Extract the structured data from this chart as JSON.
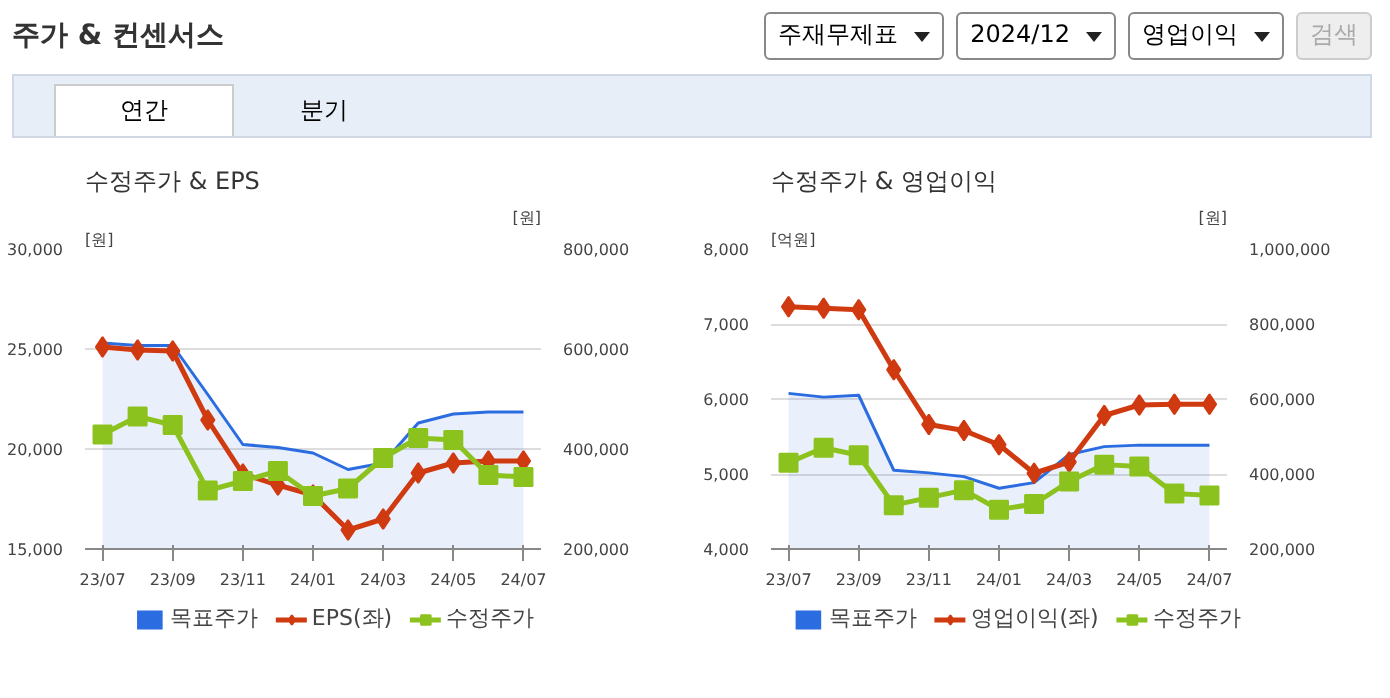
{
  "chart_data": [
    {
      "type": "other",
      "title": "주가 & 컨센서스",
      "annotations": [
        "주재무제표",
        "2024/12",
        "영업이익",
        "검색",
        "연간",
        "분기"
      ]
    },
    {
      "type": "line",
      "title": "수정주가 & EPS",
      "ylabel": "[원]",
      "y2label": "[원]",
      "categories": [
        "23/07",
        null,
        "23/09",
        null,
        "23/11",
        null,
        "24/01",
        null,
        "24/03",
        null,
        "24/05",
        null,
        "24/07"
      ],
      "ylim": [
        15000,
        30000
      ],
      "yticks": [
        {
          "value": 15000,
          "label": "15,000"
        },
        {
          "value": 20000,
          "label": "20,000"
        },
        {
          "value": 25000,
          "label": "25,000"
        },
        {
          "value": 30000,
          "label": "30,000"
        }
      ],
      "y2lim": [
        200000,
        800000
      ],
      "y2ticks": [
        {
          "value": 200000,
          "label": "200,000"
        },
        {
          "value": 400000,
          "label": "400,000"
        },
        {
          "value": 600000,
          "label": "600,000"
        },
        {
          "value": 800000,
          "label": "800,000"
        }
      ],
      "grid": "y",
      "legend": "bottom",
      "series": [
        {
          "name": "목표주가",
          "type": "area",
          "axis": "y2",
          "color": "#2b6de0",
          "values": [
            612000,
            607000,
            607000,
            509000,
            409000,
            403000,
            392000,
            359000,
            372000,
            452000,
            470000,
            474000,
            474000
          ]
        },
        {
          "name": "EPS(좌)",
          "type": "line",
          "marker": "diamond",
          "color": "#d03a10",
          "values": [
            25100,
            24950,
            24900,
            21450,
            18750,
            18200,
            17700,
            15950,
            16500,
            18800,
            19300,
            19400,
            19400
          ]
        },
        {
          "name": "수정주가",
          "type": "line",
          "marker": "square",
          "axis": "y2",
          "color": "#8cc21e",
          "values": [
            429000,
            465000,
            448000,
            317000,
            336000,
            356000,
            306000,
            321000,
            382000,
            422000,
            418000,
            348000,
            344000
          ]
        }
      ]
    },
    {
      "type": "line",
      "title": "수정주가 & 영업이익",
      "ylabel": "[억원]",
      "y2label": "[원]",
      "categories": [
        "23/07",
        null,
        "23/09",
        null,
        "23/11",
        null,
        "24/01",
        null,
        "24/03",
        null,
        "24/05",
        null,
        "24/07"
      ],
      "ylim": [
        4000,
        8000
      ],
      "yticks": [
        {
          "value": 4000,
          "label": "4,000"
        },
        {
          "value": 5000,
          "label": "5,000"
        },
        {
          "value": 6000,
          "label": "6,000"
        },
        {
          "value": 7000,
          "label": "7,000"
        },
        {
          "value": 8000,
          "label": "8,000"
        }
      ],
      "y2lim": [
        200000,
        1000000
      ],
      "y2ticks": [
        {
          "value": 200000,
          "label": "200,000"
        },
        {
          "value": 400000,
          "label": "400,000"
        },
        {
          "value": 600000,
          "label": "600,000"
        },
        {
          "value": 800000,
          "label": "800,000"
        },
        {
          "value": 1000000,
          "label": "1,000,000"
        }
      ],
      "grid": "y",
      "legend": "bottom",
      "series": [
        {
          "name": "목표주가",
          "type": "area",
          "axis": "y2",
          "color": "#2b6de0",
          "values": [
            615000,
            605000,
            610000,
            410000,
            403000,
            393000,
            362000,
            377000,
            452000,
            473000,
            477000,
            477000,
            477000
          ]
        },
        {
          "name": "영업이익(좌)",
          "type": "line",
          "marker": "diamond",
          "color": "#d03a10",
          "values": [
            7230,
            7210,
            7190,
            6390,
            5660,
            5580,
            5390,
            5010,
            5160,
            5780,
            5920,
            5930,
            5930
          ]
        },
        {
          "name": "수정주가",
          "type": "line",
          "marker": "square",
          "axis": "y2",
          "color": "#8cc21e",
          "values": [
            430000,
            470000,
            450000,
            317000,
            337000,
            357000,
            305000,
            320000,
            380000,
            425000,
            420000,
            348000,
            343000
          ]
        }
      ]
    }
  ]
}
